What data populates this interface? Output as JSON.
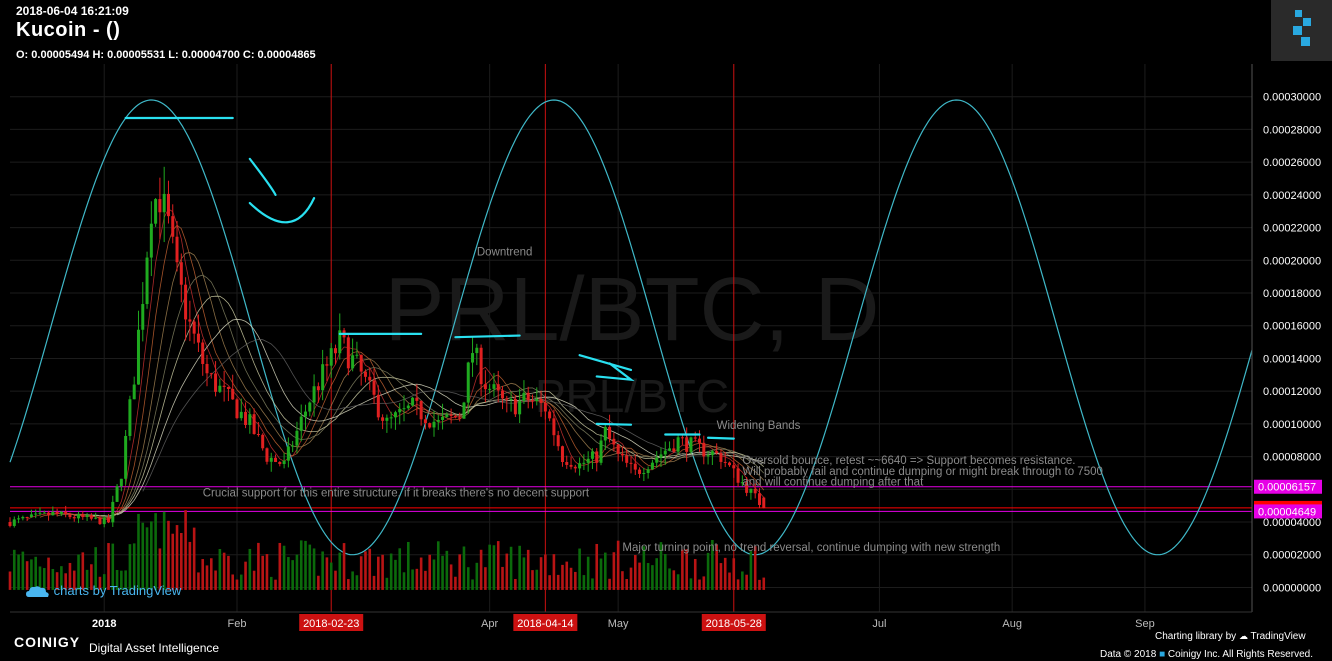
{
  "header": {
    "timestamp": "2018-06-04 16:21:09",
    "exchange": "Kucoin",
    "title_suffix": "-  ()",
    "ohlc": "O: 0.00005494 H: 0.00005531 L: 0.00004700 C: 0.00004865"
  },
  "watermark": {
    "main": "PRL/BTC, D",
    "sub": "PRL/BTC"
  },
  "chart_data": {
    "type": "candlestick",
    "symbol": "PRL/BTC",
    "interval": "D",
    "x_range": [
      "2017-12-10",
      "2018-09-26"
    ],
    "ylim": [
      -1.5e-05,
      0.00032
    ],
    "y_ticks": [
      "0.00000000",
      "0.00002000",
      "0.00004000",
      "0.00006000",
      "0.00008000",
      "0.00010000",
      "0.00012000",
      "0.00014000",
      "0.00016000",
      "0.00018000",
      "0.00020000",
      "0.00022000",
      "0.00024000",
      "0.00026000",
      "0.00028000",
      "0.00030000"
    ],
    "x_ticks": [
      {
        "date": "2018-01-01",
        "label": "2018"
      },
      {
        "date": "2018-02-01",
        "label": "Feb"
      },
      {
        "date": "2018-04-01",
        "label": "Apr"
      },
      {
        "date": "2018-05-01",
        "label": "May"
      },
      {
        "date": "2018-07-01",
        "label": "Jul"
      },
      {
        "date": "2018-08-01",
        "label": "Aug"
      },
      {
        "date": "2018-09-01",
        "label": "Sep"
      }
    ],
    "date_markers": [
      "2018-02-23",
      "2018-04-14",
      "2018-05-28"
    ],
    "price_markers": [
      {
        "value": 6.157e-05,
        "label": "0.00006157",
        "color": "#e600e6"
      },
      {
        "value": 4.865e-05,
        "label": "0.00004865",
        "color": "#ff0000"
      },
      {
        "value": 4.649e-05,
        "label": "0.00004649",
        "color": "#e600e6"
      }
    ],
    "ohlc_last": {
      "o": 5.494e-05,
      "h": 5.531e-05,
      "l": 4.7e-05,
      "c": 4.865e-05
    },
    "close_path": [
      [
        "2017-12-10",
        4e-05
      ],
      [
        "2017-12-20",
        4.5e-05
      ],
      [
        "2017-12-28",
        4.2e-05
      ],
      [
        "2018-01-02",
        4e-05
      ],
      [
        "2018-01-05",
        7e-05
      ],
      [
        "2018-01-08",
        0.00013
      ],
      [
        "2018-01-10",
        0.00018
      ],
      [
        "2018-01-12",
        0.000235
      ],
      [
        "2018-01-14",
        0.00024
      ],
      [
        "2018-01-16",
        0.00022
      ],
      [
        "2018-01-18",
        0.00019
      ],
      [
        "2018-01-21",
        0.00016
      ],
      [
        "2018-01-25",
        0.00013
      ],
      [
        "2018-01-30",
        0.000115
      ],
      [
        "2018-02-04",
        0.0001
      ],
      [
        "2018-02-08",
        8e-05
      ],
      [
        "2018-02-12",
        7.5e-05
      ],
      [
        "2018-02-15",
        9.5e-05
      ],
      [
        "2018-02-18",
        0.000115
      ],
      [
        "2018-02-22",
        0.000135
      ],
      [
        "2018-02-25",
        0.00015
      ],
      [
        "2018-03-01",
        0.000135
      ],
      [
        "2018-03-04",
        0.00012
      ],
      [
        "2018-03-08",
        0.0001
      ],
      [
        "2018-03-14",
        0.00011
      ],
      [
        "2018-03-20",
        0.0001
      ],
      [
        "2018-03-25",
        0.000105
      ],
      [
        "2018-03-28",
        0.000145
      ],
      [
        "2018-03-31",
        0.000125
      ],
      [
        "2018-04-05",
        0.00011
      ],
      [
        "2018-04-10",
        0.000115
      ],
      [
        "2018-04-14",
        0.00011
      ],
      [
        "2018-04-18",
        8e-05
      ],
      [
        "2018-04-22",
        7.5e-05
      ],
      [
        "2018-04-26",
        8e-05
      ],
      [
        "2018-04-28",
        9.5e-05
      ],
      [
        "2018-05-01",
        8e-05
      ],
      [
        "2018-05-05",
        7e-05
      ],
      [
        "2018-05-10",
        8e-05
      ],
      [
        "2018-05-15",
        9e-05
      ],
      [
        "2018-05-20",
        8.5e-05
      ],
      [
        "2018-05-25",
        8e-05
      ],
      [
        "2018-05-28",
        7e-05
      ],
      [
        "2018-06-02",
        5.5e-05
      ],
      [
        "2018-06-04",
        4.865e-05
      ]
    ],
    "sine_cycle": {
      "peak_date": "2018-01-12",
      "period_days": 94,
      "amplitude_high": 0.000298,
      "amplitude_low": 2e-05
    },
    "annotations": [
      {
        "text": "Downtrend",
        "date": "2018-03-29",
        "value": 0.000203
      },
      {
        "text": "Widening Bands",
        "date": "2018-05-24",
        "value": 9.7e-05
      },
      {
        "text": "Oversold bounce, retest ~~6640 => Support becomes resistance.",
        "date": "2018-05-30",
        "value": 7.55e-05
      },
      {
        "text": "Will probably fail and continue dumping or might break through to 7500",
        "date": "2018-05-30",
        "value": 6.88e-05
      },
      {
        "text": "and will continue dumping after that",
        "date": "2018-05-30",
        "value": 6.22e-05
      },
      {
        "text": "Crucial support for this entire structure, if it breaks there's no decent support",
        "date": "2018-01-24",
        "value": 5.55e-05
      },
      {
        "text": "Major turning point, no trend reversal, continue dumping with new strength",
        "date": "2018-05-02",
        "value": 2.22e-05
      }
    ]
  },
  "footer": {
    "tradingview": "charts by TradingView",
    "brand": "COINIGY",
    "brand_sub": "Digital Asset Intelligence",
    "charting_lib": "Charting library by",
    "charting_lib_name": "TradingView",
    "copyright": "Data © 2018",
    "copyright_rest": "Coinigy Inc. All Rights Reserved."
  },
  "colors": {
    "background": "#000000",
    "grid": "#1c1c1c",
    "up": "#1faa1f",
    "down": "#e02020",
    "sine": "#3fb8c8",
    "drawing": "#29e0f0",
    "date_marker": "#cc1111",
    "magenta": "#e600e6",
    "annotation": "#8a8a8a"
  }
}
